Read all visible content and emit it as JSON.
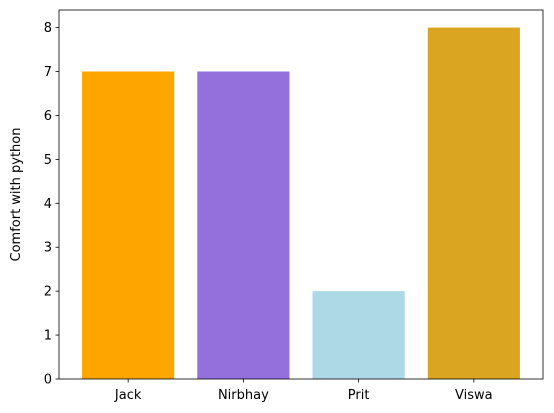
{
  "chart_data": {
    "type": "bar",
    "categories": [
      "Jack",
      "Nirbhay",
      "Prit",
      "Viswa"
    ],
    "values": [
      7,
      7,
      2,
      8
    ],
    "colors": [
      "#ffa500",
      "#9370db",
      "#add8e6",
      "#daa520"
    ],
    "title": "",
    "xlabel": "",
    "ylabel": "Comfort with python",
    "ylim": [
      0,
      8.4
    ],
    "yticks": [
      0,
      1,
      2,
      3,
      4,
      5,
      6,
      7,
      8
    ],
    "grid": false
  }
}
